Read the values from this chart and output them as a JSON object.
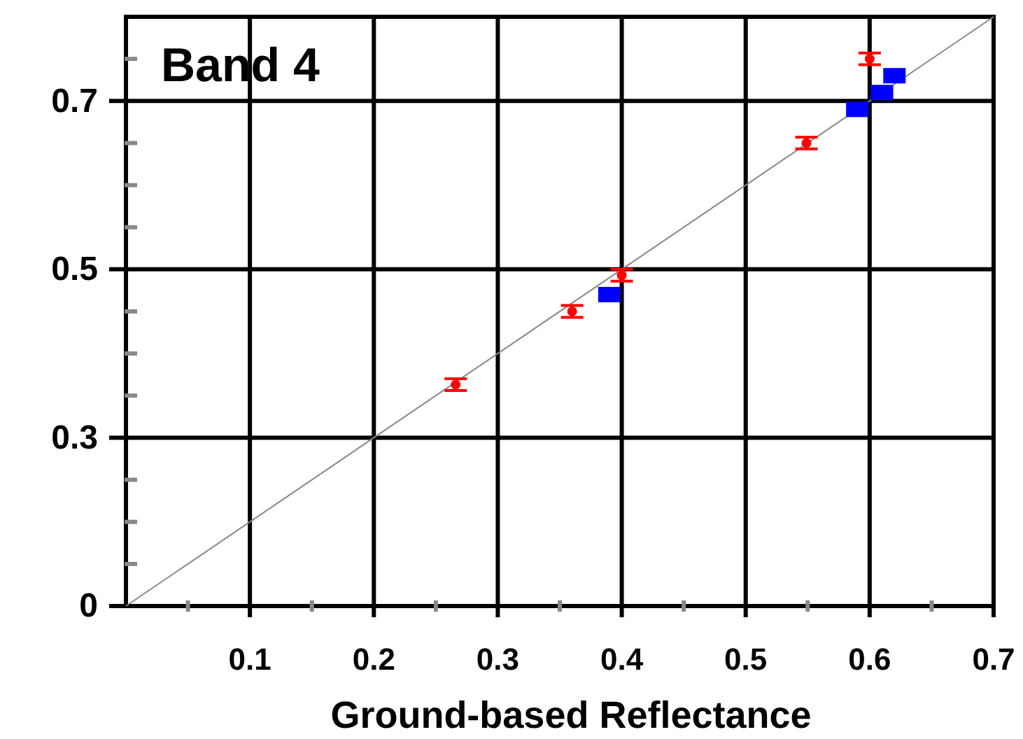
{
  "chart_data": {
    "type": "scatter",
    "title": "Band 4",
    "xlabel": "Ground-based Reflectance",
    "xlim": [
      0,
      0.7
    ],
    "ylim": [
      0.1,
      0.8
    ],
    "xticks": [
      {
        "value": 0.05,
        "label": null
      },
      0.1,
      {
        "value": 0.15,
        "label": null
      },
      0.2,
      {
        "value": 0.25,
        "label": null
      },
      0.3,
      {
        "value": 0.35,
        "label": null
      },
      0.4,
      {
        "value": 0.45,
        "label": null
      },
      0.5,
      {
        "value": 0.55,
        "label": null
      },
      0.6,
      {
        "value": 0.65,
        "label": null
      },
      0.7
    ],
    "yticks": [
      {
        "value": 0.1,
        "label": "0"
      },
      {
        "value": 0.15,
        "label": null
      },
      {
        "value": 0.2,
        "label": null
      },
      {
        "value": 0.25,
        "label": null
      },
      {
        "value": 0.3,
        "label": "0.3"
      },
      {
        "value": 0.35,
        "label": null
      },
      {
        "value": 0.4,
        "label": null
      },
      {
        "value": 0.45,
        "label": null
      },
      {
        "value": 0.5,
        "label": "0.5"
      },
      {
        "value": 0.55,
        "label": null
      },
      {
        "value": 0.6,
        "label": null
      },
      {
        "value": 0.65,
        "label": null
      },
      {
        "value": 0.7,
        "label": "0.7"
      },
      {
        "value": 0.75,
        "label": null
      }
    ],
    "grid": true,
    "series": [
      {
        "type": "line",
        "color": "#888888",
        "x": [
          0,
          0.7
        ],
        "values": [
          0.1,
          0.8
        ],
        "marker": "none"
      },
      {
        "color": "#ff0000",
        "x": [
          0.266,
          0.36,
          0.4,
          0.549,
          0.6
        ],
        "values": [
          0.363,
          0.45,
          0.493,
          0.65,
          0.75
        ],
        "errors": [
          0.007,
          0.007,
          0.007,
          0.007,
          0.007
        ],
        "marker": "circle"
      },
      {
        "color": "#0000ff",
        "x": [
          0.39,
          0.59,
          0.61,
          0.62
        ],
        "values": [
          0.47,
          0.69,
          0.71,
          0.73
        ],
        "marker": "square"
      }
    ]
  }
}
